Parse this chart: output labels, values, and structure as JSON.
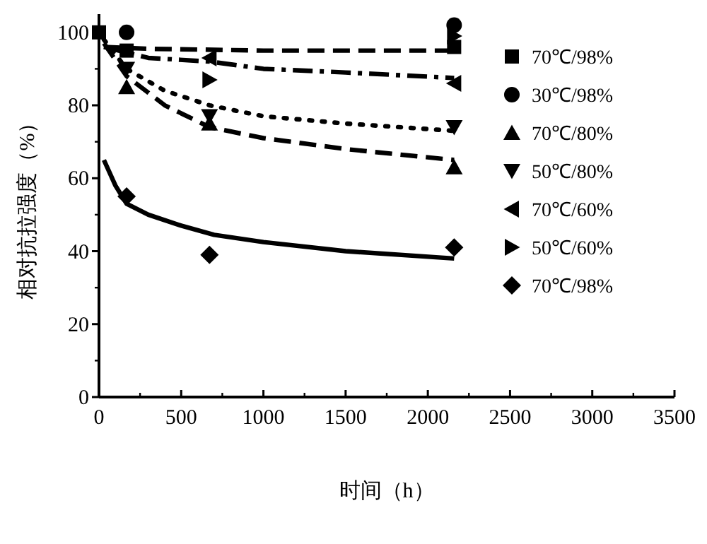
{
  "chart_data": {
    "type": "scatter",
    "xlabel": "时间（h）",
    "ylabel": "相对抗拉强度（%）",
    "xlim": [
      0,
      3500
    ],
    "xticks": [
      0,
      500,
      1000,
      1500,
      2000,
      2500,
      3000,
      3500
    ],
    "ylim": [
      0,
      105
    ],
    "yticks": [
      0,
      20,
      40,
      60,
      80,
      100
    ],
    "legend": "top right",
    "series": [
      {
        "name": "70℃/98%",
        "marker": "square",
        "color": "#000000",
        "x": [
          0,
          168,
          2160
        ],
        "values": [
          100,
          95,
          96
        ]
      },
      {
        "name": "30℃/98%",
        "marker": "circle",
        "color": "#000000",
        "x": [
          168,
          2160
        ],
        "values": [
          100,
          102
        ]
      },
      {
        "name": "70℃/80%",
        "marker": "triangle",
        "color": "#000000",
        "x": [
          168,
          672,
          2160
        ],
        "values": [
          85,
          75,
          63
        ]
      },
      {
        "name": "50℃/80%",
        "marker": "triangle_down",
        "color": "#000000",
        "x": [
          168,
          672,
          2160
        ],
        "values": [
          90,
          77,
          74
        ]
      },
      {
        "name": "70℃/60%",
        "marker": "triangle_left",
        "color": "#000000",
        "x": [
          672,
          2160
        ],
        "values": [
          93,
          86
        ]
      },
      {
        "name": "50℃/60%",
        "marker": "triangle_right",
        "color": "#000000",
        "x": [
          672,
          2160
        ],
        "values": [
          87,
          99
        ]
      },
      {
        "name": "70℃/98%",
        "marker": "diamond",
        "color": "#000000",
        "x": [
          168,
          672,
          2160
        ],
        "values": [
          55,
          39,
          41
        ]
      },
      {
        "type": "line",
        "line_style": "dashed",
        "color": "#000000",
        "x": [
          30,
          300,
          1000,
          2160
        ],
        "values": [
          96,
          95.5,
          95,
          95
        ]
      },
      {
        "type": "line",
        "line_style": "dashdot",
        "color": "#000000",
        "x": [
          30,
          300,
          672,
          1000,
          1500,
          2160
        ],
        "values": [
          96,
          93,
          92,
          90,
          89,
          87.5
        ]
      },
      {
        "type": "line",
        "line_style": "dotted",
        "color": "#000000",
        "x": [
          30,
          168,
          400,
          672,
          1000,
          1500,
          2160
        ],
        "values": [
          98,
          90,
          84,
          80,
          77,
          75,
          73
        ]
      },
      {
        "type": "line",
        "line_style": "dashed",
        "color": "#000000",
        "x": [
          30,
          168,
          400,
          672,
          1000,
          1500,
          2160
        ],
        "values": [
          97,
          88,
          80,
          74,
          71,
          68,
          65
        ]
      },
      {
        "type": "line",
        "line_style": "solid",
        "color": "#000000",
        "x": [
          30,
          100,
          168,
          300,
          500,
          700,
          1000,
          1500,
          2160
        ],
        "values": [
          65,
          58,
          53,
          50,
          47,
          44.5,
          42.5,
          40,
          38
        ]
      }
    ]
  }
}
